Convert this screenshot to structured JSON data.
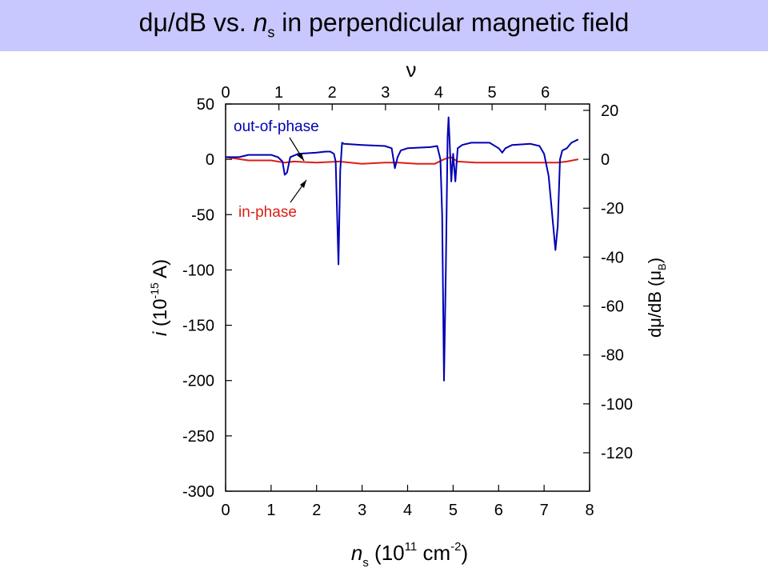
{
  "title": {
    "prefix": "d",
    "mu": "μ",
    "mid": "/dB vs. ",
    "n": "n",
    "n_sub": "s",
    "suffix": " in perpendicular magnetic field"
  },
  "chart_data": {
    "type": "line",
    "left_axis": {
      "label_i": "i",
      "label_rest": " (10",
      "label_exp": "-15",
      "label_end": " A)",
      "ylim": [
        -300,
        50
      ],
      "ticks": [
        50,
        0,
        -50,
        -100,
        -150,
        -200,
        -250,
        -300
      ],
      "tick_labels": [
        "50",
        "0",
        "-50",
        "-100",
        "-150",
        "-200",
        "-250",
        "-300"
      ]
    },
    "right_axis": {
      "label_d": "d",
      "label_mu": "μ",
      "label_mid": "/dB (",
      "label_mu2": "μ",
      "label_sub": "B",
      "label_end": ")",
      "ylim": [
        -135.7,
        22.6
      ],
      "ticks": [
        20,
        0,
        -20,
        -40,
        -60,
        -80,
        -100,
        -120
      ],
      "tick_labels": [
        "20",
        "0",
        "-20",
        "-40",
        "-60",
        "-80",
        "-100",
        "-120"
      ]
    },
    "bottom_axis": {
      "label_n": "n",
      "label_sub": "s",
      "label_mid": " (10",
      "label_exp": "11",
      "label_mid2": " cm",
      "label_exp2": "-2",
      "label_end": ")",
      "xlim": [
        0,
        8
      ],
      "ticks": [
        0,
        1,
        2,
        3,
        4,
        5,
        6,
        7,
        8
      ],
      "tick_labels": [
        "0",
        "1",
        "2",
        "3",
        "4",
        "5",
        "6",
        "7",
        "8"
      ]
    },
    "top_axis": {
      "label": "ν",
      "xlim": [
        0,
        6.83
      ],
      "ticks": [
        0,
        1,
        2,
        3,
        4,
        5,
        6
      ],
      "tick_labels": [
        "0",
        "1",
        "2",
        "3",
        "4",
        "5",
        "6"
      ]
    },
    "series": [
      {
        "name": "out-of-phase",
        "color": "#0000b4",
        "x": [
          0,
          0.3,
          0.5,
          1.0,
          1.15,
          1.25,
          1.3,
          1.35,
          1.42,
          1.6,
          2.0,
          2.2,
          2.3,
          2.38,
          2.42,
          2.48,
          2.52,
          2.56,
          2.6,
          3.0,
          3.5,
          3.65,
          3.72,
          3.78,
          3.85,
          4.0,
          4.5,
          4.65,
          4.72,
          4.76,
          4.8,
          4.84,
          4.88,
          4.9,
          4.93,
          4.96,
          5.0,
          5.05,
          5.1,
          5.2,
          5.4,
          5.8,
          6.0,
          6.08,
          6.15,
          6.3,
          6.7,
          6.9,
          7.0,
          7.1,
          7.2,
          7.25,
          7.3,
          7.35,
          7.4,
          7.5,
          7.6,
          7.75
        ],
        "y": [
          2,
          2,
          4,
          4,
          2,
          -2,
          -14,
          -12,
          2,
          5,
          6,
          7,
          7,
          5,
          -2,
          -95,
          -10,
          15,
          14,
          13,
          12,
          10,
          -8,
          2,
          8,
          10,
          11,
          12,
          0,
          -50,
          -200,
          -100,
          20,
          38,
          10,
          -20,
          5,
          -20,
          10,
          13,
          15,
          15,
          10,
          6,
          10,
          13,
          14,
          12,
          5,
          -15,
          -60,
          -82,
          -60,
          0,
          8,
          10,
          15,
          18
        ],
        "in_phase_note": ""
      },
      {
        "name": "in-phase",
        "color": "#dc1e14",
        "x": [
          0,
          0.5,
          1.0,
          1.3,
          1.5,
          2.0,
          2.5,
          3.0,
          3.5,
          3.8,
          4.2,
          4.6,
          4.8,
          4.95,
          5.1,
          5.5,
          6.0,
          6.5,
          7.0,
          7.3,
          7.5,
          7.75
        ],
        "y": [
          2,
          -1,
          -1,
          -3,
          -2,
          -3,
          -2,
          -4,
          -3,
          -3,
          -4,
          -4,
          0,
          2,
          -2,
          -3,
          -3,
          -3,
          -3,
          -3,
          -2,
          0
        ]
      }
    ],
    "annotations": [
      {
        "text": "out-of-phase",
        "color": "#0000b4",
        "arrow_to": [
          1.7,
          8
        ]
      },
      {
        "text": "in-phase",
        "color": "#dc1e14",
        "arrow_to": [
          1.7,
          -7
        ]
      }
    ],
    "grid": false
  }
}
